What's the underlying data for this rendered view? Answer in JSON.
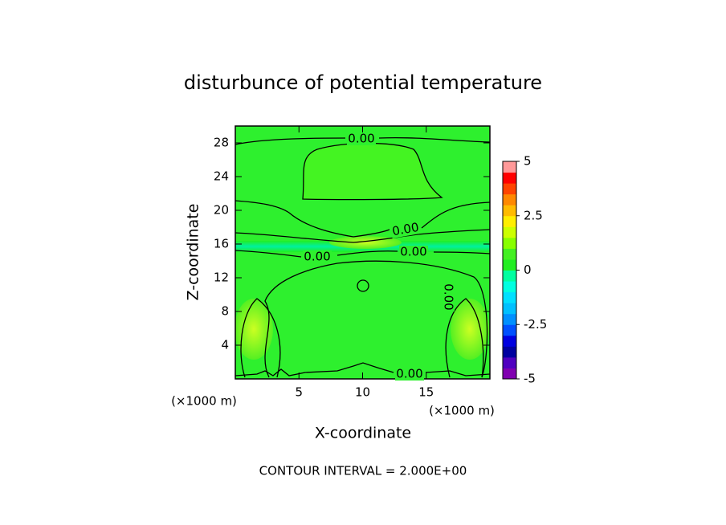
{
  "chart_data": {
    "type": "contour",
    "title": "disturbunce of potential temperature",
    "x_label": "X-coordinate",
    "y_label": "Z-coordinate",
    "x_unit": "(×1000 m)",
    "y_unit": "(×1000 m)",
    "xlim": [
      0,
      20
    ],
    "ylim": [
      0,
      30
    ],
    "xticks": [
      5,
      10,
      15
    ],
    "yticks": [
      4,
      8,
      12,
      16,
      20,
      24,
      28
    ],
    "contour_labels": [
      "0.00",
      "0.00",
      "0.00",
      "0.00",
      "0.00",
      "0.00"
    ],
    "annotation": "CONTOUR INTERVAL = 2.000E+00",
    "colorbar": {
      "lim": [
        -5,
        5
      ],
      "ticks": [
        5,
        2.5,
        0,
        -2.5,
        -5
      ],
      "colors": [
        "#8000b0",
        "#5000c0",
        "#0000a0",
        "#0000e0",
        "#0050ff",
        "#0090ff",
        "#00c0ff",
        "#00e0ff",
        "#00ffe0",
        "#00ffa0",
        "#22ee22",
        "#44f022",
        "#88ff00",
        "#ccff00",
        "#ffee00",
        "#ffbb00",
        "#ff8800",
        "#ff4400",
        "#ff0000",
        "#ff9999"
      ]
    }
  }
}
